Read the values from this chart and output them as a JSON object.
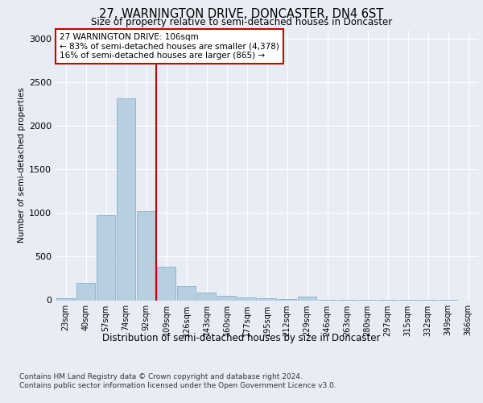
{
  "title": "27, WARNINGTON DRIVE, DONCASTER, DN4 6ST",
  "subtitle": "Size of property relative to semi-detached houses in Doncaster",
  "xlabel": "Distribution of semi-detached houses by size in Doncaster",
  "ylabel": "Number of semi-detached properties",
  "categories": [
    "23sqm",
    "40sqm",
    "57sqm",
    "74sqm",
    "92sqm",
    "109sqm",
    "126sqm",
    "143sqm",
    "160sqm",
    "177sqm",
    "195sqm",
    "212sqm",
    "229sqm",
    "246sqm",
    "263sqm",
    "280sqm",
    "297sqm",
    "315sqm",
    "332sqm",
    "349sqm",
    "366sqm"
  ],
  "values": [
    20,
    200,
    980,
    2320,
    1020,
    380,
    165,
    90,
    55,
    30,
    20,
    15,
    45,
    5,
    5,
    5,
    3,
    2,
    1,
    1,
    0
  ],
  "bar_color": "#b8cfe0",
  "bar_edge_color": "#8aaec8",
  "vline_index": 5,
  "annotation_title": "27 WARNINGTON DRIVE: 106sqm",
  "annotation_line1": "← 83% of semi-detached houses are smaller (4,378)",
  "annotation_line2": "16% of semi-detached houses are larger (865) →",
  "ylim": [
    0,
    3100
  ],
  "yticks": [
    0,
    500,
    1000,
    1500,
    2000,
    2500,
    3000
  ],
  "footer1": "Contains HM Land Registry data © Crown copyright and database right 2024.",
  "footer2": "Contains public sector information licensed under the Open Government Licence v3.0.",
  "background_color": "#e8edf5",
  "plot_bg_color": "#e8edf5",
  "grid_color": "#ffffff",
  "annotation_box_color": "#ffffff",
  "annotation_box_edge": "#cc0000",
  "vline_color": "#cc0000"
}
